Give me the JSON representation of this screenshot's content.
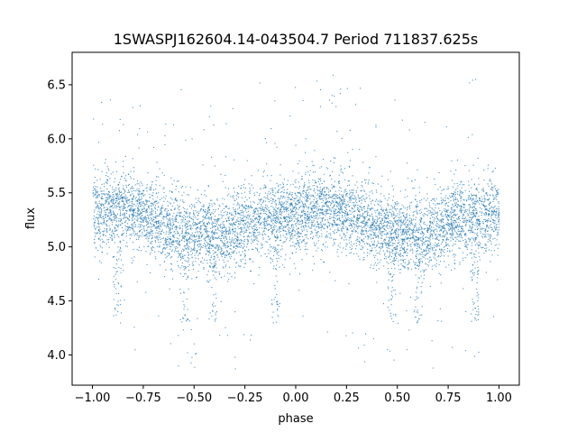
{
  "chart_data": {
    "type": "scatter",
    "title": "1SWASPJ162604.14-043504.7 Period 711837.625s",
    "xlabel": "phase",
    "ylabel": "flux",
    "xlim": [
      -1.1,
      1.1
    ],
    "ylim": [
      3.72,
      6.8
    ],
    "x_ticks": [
      -1.0,
      -0.75,
      -0.5,
      -0.25,
      0.0,
      0.25,
      0.5,
      0.75,
      1.0
    ],
    "x_tick_labels": [
      "−1.00",
      "−0.75",
      "−0.50",
      "−0.25",
      "0.00",
      "0.25",
      "0.50",
      "0.75",
      "1.00"
    ],
    "y_ticks": [
      4.0,
      4.5,
      5.0,
      5.5,
      6.0,
      6.5
    ],
    "y_tick_labels": [
      "4.0",
      "4.5",
      "5.0",
      "5.5",
      "6.0",
      "6.5"
    ],
    "grid": false,
    "legend": "none",
    "point_color": "#1f77b4",
    "series": [
      {
        "phase_range": [
          -1.0,
          1.0
        ],
        "description_points": [
          [
            -1.0,
            5.3
          ],
          [
            -0.875,
            5.38
          ],
          [
            -0.75,
            5.3
          ],
          [
            -0.625,
            5.2
          ],
          [
            -0.5,
            5.12
          ],
          [
            -0.375,
            5.1
          ],
          [
            -0.25,
            5.22
          ],
          [
            -0.125,
            5.28
          ],
          [
            0.0,
            5.3
          ],
          [
            0.125,
            5.38
          ],
          [
            0.25,
            5.3
          ],
          [
            0.375,
            5.2
          ],
          [
            0.5,
            5.12
          ],
          [
            0.625,
            5.1
          ],
          [
            0.75,
            5.22
          ],
          [
            0.875,
            5.28
          ],
          [
            1.0,
            5.3
          ]
        ]
      }
    ]
  }
}
